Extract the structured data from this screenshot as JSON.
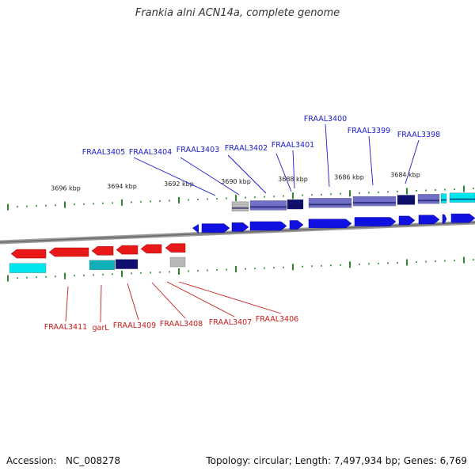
{
  "header": {
    "title": "Frankia alni ACN14a, complete genome"
  },
  "footer": {
    "accession_label": "Accession:",
    "accession": "NC_008278",
    "topology_label": "Topology:",
    "topology": "circular",
    "length_label": "Length:",
    "length": "7,497,934 bp",
    "genes_label": "Genes:",
    "genes": "6,769"
  },
  "colors": {
    "forward_gene": "#1010e0",
    "reverse_gene": "#e81818",
    "label_forward": "#1a1acc",
    "label_reverse": "#cc1a1a",
    "tick": "#2a8a2a",
    "backbone": "#808080",
    "cyan_feature": "#00e5ee",
    "navy_feature": "#101070",
    "slate_feature": "#7070c8",
    "gray_feature": "#b8b8b8"
  },
  "ruler": {
    "labels": [
      "3696 kbp",
      "3694 kbp",
      "3692 kbp",
      "3690 kbp",
      "3688 kbp",
      "3686 kbp",
      "3684 kbp"
    ]
  },
  "forward_labels": [
    "FRAAL3405",
    "FRAAL3404",
    "FRAAL3403",
    "FRAAL3402",
    "FRAAL3401",
    "FRAAL3400",
    "FRAAL3399",
    "FRAAL3398"
  ],
  "reverse_labels": [
    "FRAAL3411",
    "garL",
    "FRAAL3409",
    "FRAAL3408",
    "FRAAL3407",
    "FRAAL3406"
  ]
}
